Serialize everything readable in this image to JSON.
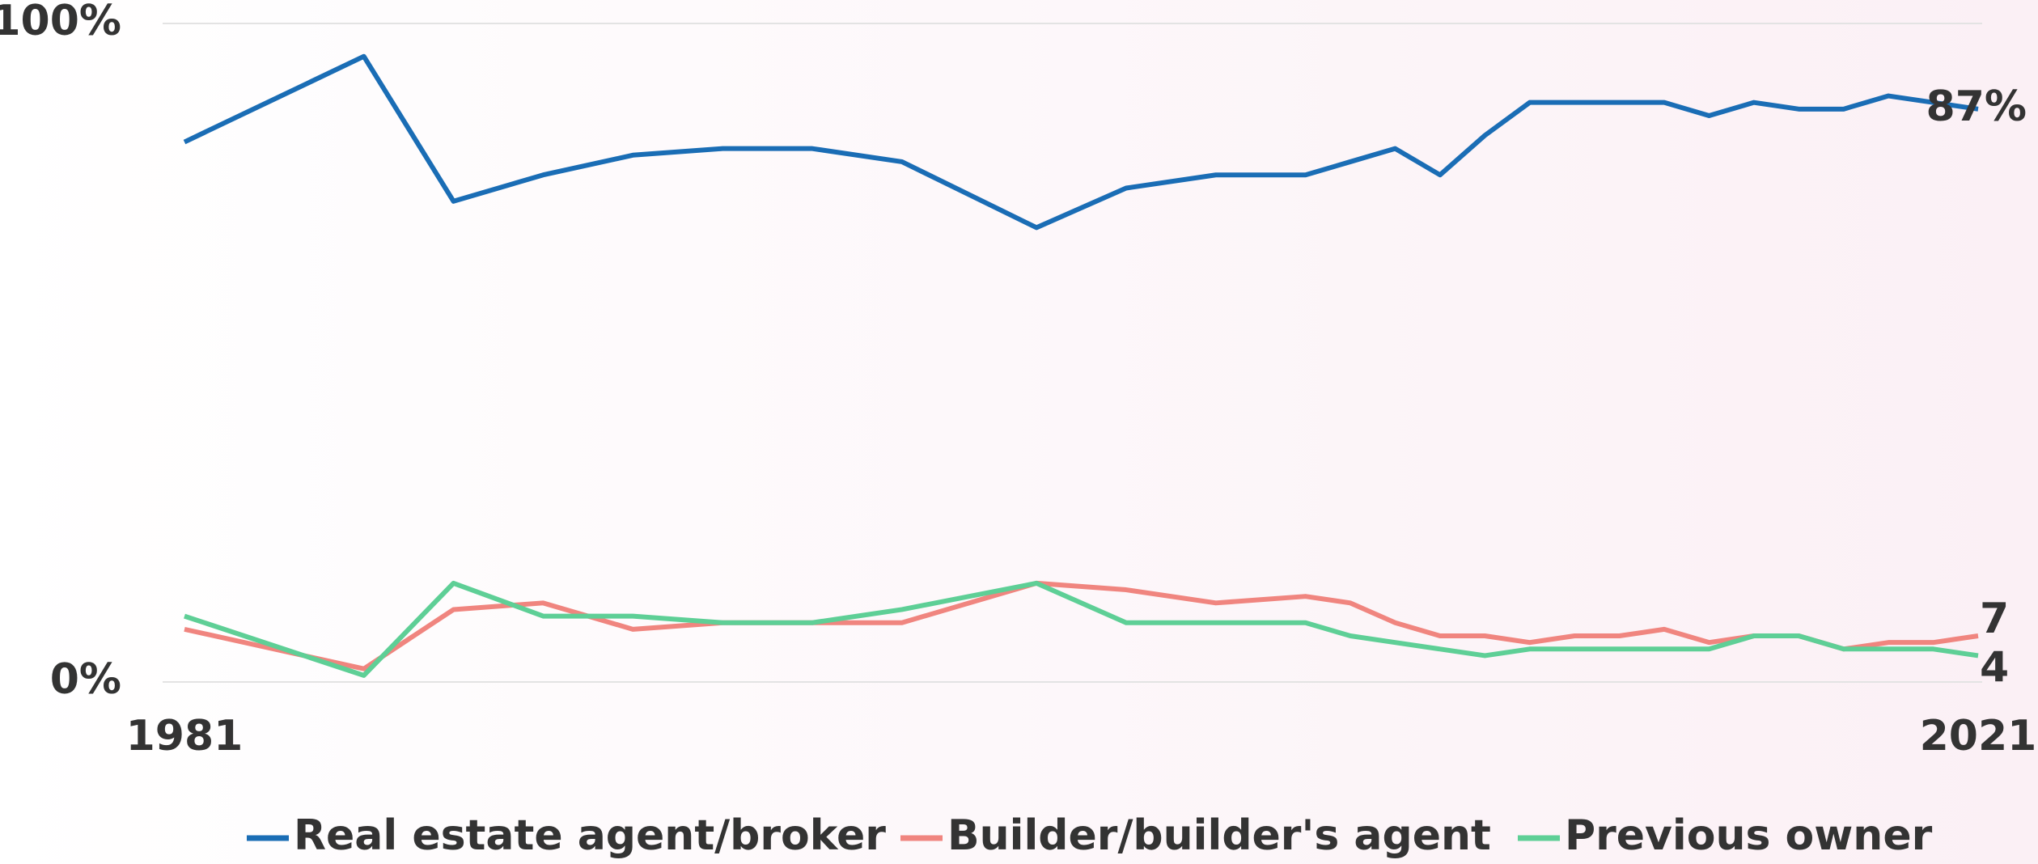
{
  "chart_data": {
    "type": "line",
    "x": [
      1981,
      1985,
      1987,
      1989,
      1991,
      1993,
      1995,
      1997,
      2000,
      2002,
      2004,
      2005,
      2006,
      2007,
      2008,
      2009,
      2010,
      2011,
      2012,
      2013,
      2014,
      2015,
      2016,
      2017,
      2018,
      2019,
      2020,
      2021
    ],
    "xlim": [
      1981,
      2021
    ],
    "xticks": [
      1981,
      2021
    ],
    "ylim": [
      0,
      100
    ],
    "yticks": [
      {
        "value": 0,
        "label": "0%"
      },
      {
        "value": 100,
        "label": "100%"
      }
    ],
    "grid": true,
    "legend": "bottom",
    "series": [
      {
        "name": "Real estate agent/broker",
        "color": "#1a6db5",
        "values": [
          82,
          95,
          73,
          77,
          80,
          81,
          81,
          79,
          69,
          75,
          77,
          77,
          77,
          79,
          81,
          77,
          83,
          88,
          88,
          88,
          88,
          86,
          88,
          87,
          87,
          89,
          88,
          87
        ],
        "value_labels": [
          null,
          null,
          null,
          null,
          null,
          null,
          null,
          null,
          null,
          null,
          null,
          null,
          null,
          null,
          null,
          null,
          null,
          null,
          null,
          null,
          null,
          null,
          null,
          null,
          null,
          null,
          null,
          "87%"
        ]
      },
      {
        "name": "Builder/builder's agent",
        "color": "#f0857f",
        "values": [
          8,
          2,
          11,
          12,
          8,
          9,
          9,
          9,
          15,
          14,
          12,
          12.5,
          13,
          12,
          9,
          7,
          7,
          6,
          7,
          7,
          8,
          6,
          7,
          7,
          5,
          6,
          6,
          7
        ],
        "value_labels": [
          null,
          null,
          null,
          null,
          null,
          null,
          null,
          null,
          null,
          null,
          null,
          null,
          null,
          null,
          null,
          null,
          null,
          null,
          null,
          null,
          null,
          null,
          null,
          null,
          null,
          null,
          null,
          "7"
        ]
      },
      {
        "name": "Previous owner",
        "color": "#5ecf96",
        "values": [
          10,
          1,
          15,
          10,
          10,
          9,
          9,
          11,
          15,
          9,
          9,
          9,
          9,
          7,
          6,
          5,
          4,
          5,
          5,
          5,
          5,
          5,
          7,
          7,
          5,
          5,
          5,
          4
        ],
        "value_labels": [
          null,
          null,
          null,
          null,
          null,
          null,
          null,
          null,
          null,
          null,
          null,
          null,
          null,
          null,
          null,
          null,
          null,
          null,
          null,
          null,
          null,
          null,
          null,
          null,
          null,
          null,
          null,
          "4"
        ]
      }
    ]
  }
}
